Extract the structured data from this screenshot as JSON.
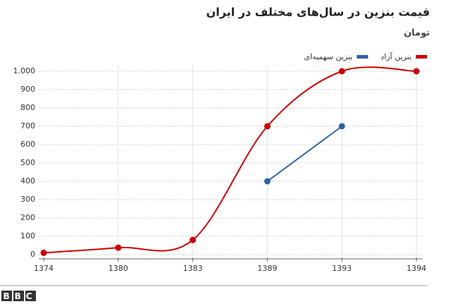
{
  "chart_data": {
    "type": "line",
    "title": "قیمت بنزین در سال‌های مختلف در ایران",
    "subtitle": "تومان",
    "categories": [
      "1374",
      "1380",
      "1383",
      "1389",
      "1393",
      "1394"
    ],
    "series": [
      {
        "name": "بنزین آزاد",
        "color": "#cc0000",
        "values": [
          10,
          38,
          80,
          700,
          1000,
          1000
        ]
      },
      {
        "name": "بنزین سهمیه‌ای",
        "color": "#2e5fa8",
        "values": [
          null,
          null,
          null,
          400,
          700,
          null
        ]
      }
    ],
    "ylim": [
      0,
      1000
    ],
    "yticks": [
      0,
      100,
      200,
      300,
      400,
      500,
      600,
      700,
      800,
      900,
      {
        "value": 1000,
        "label": "1.000"
      }
    ],
    "grid": true,
    "legend": "top-right",
    "logo": "BBC"
  }
}
